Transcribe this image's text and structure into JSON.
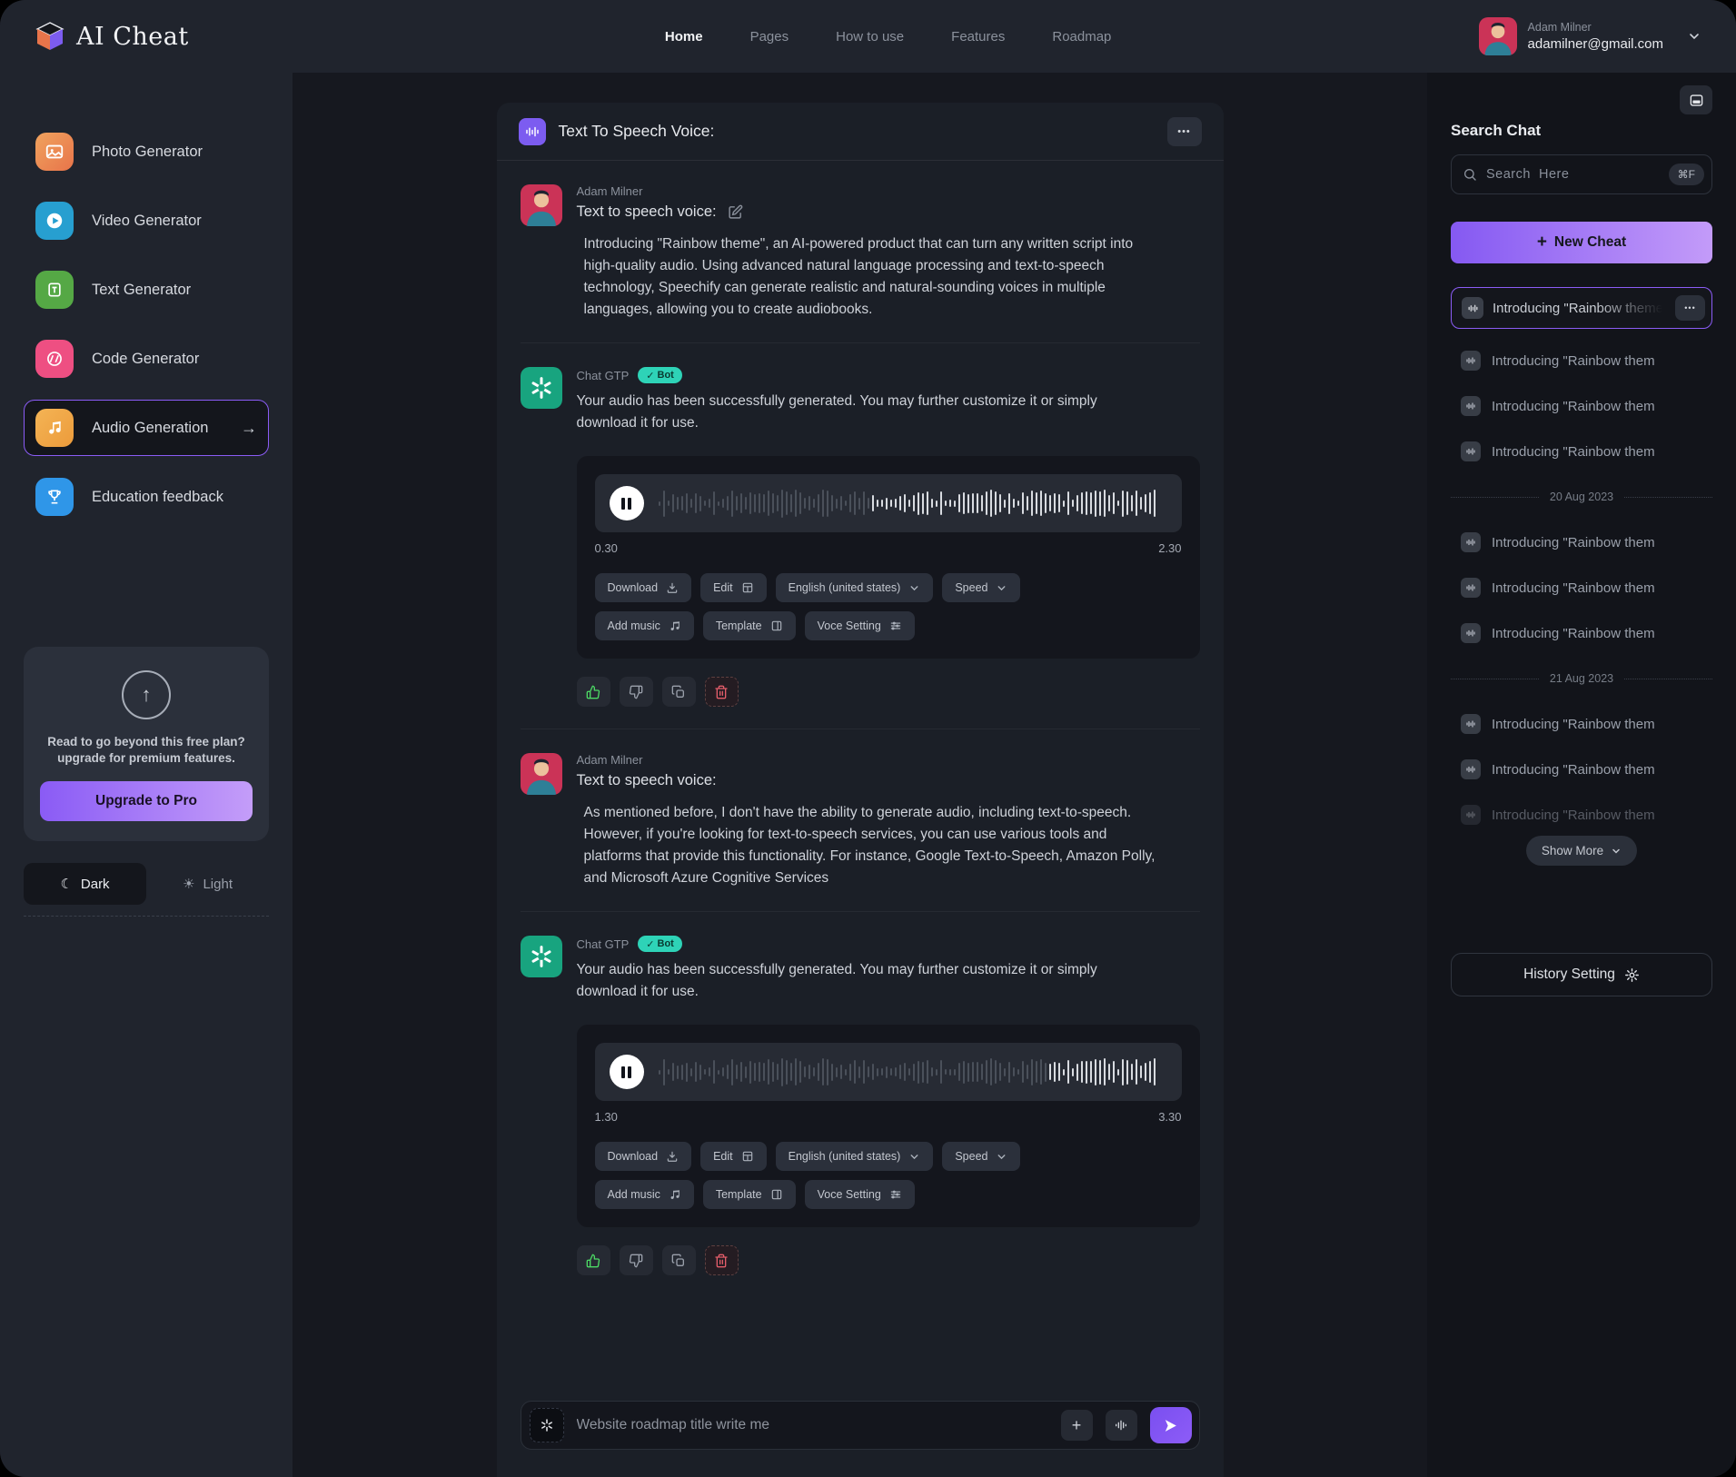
{
  "colors": {
    "accent_purple": "#8b5cf6",
    "purple_gradient": [
      "#8559f2",
      "#c39bf9"
    ],
    "bot_badge_teal": "#2ed3b7",
    "openai_green": "#18a47f",
    "like_green": "#4cd964",
    "danger_red": "#e35d6a"
  },
  "glyphs": {
    "dots": "•••",
    "plus": "+",
    "arrow_right": "→",
    "arrow_up": "↑",
    "moon": "☾",
    "sun": "☀",
    "check": "✓"
  },
  "navbar": {
    "logo": "AI Cheat",
    "links": [
      "Home",
      "Pages",
      "How to use",
      "Features",
      "Roadmap"
    ],
    "active_link": "Home",
    "user": {
      "name": "Adam Milner",
      "email": "adamilner@gmail.com"
    }
  },
  "sidebar": {
    "items": [
      {
        "label": "Photo Generator"
      },
      {
        "label": "Video Generator"
      },
      {
        "label": "Text Generator"
      },
      {
        "label": "Code Generator"
      },
      {
        "label": "Audio Generation",
        "active": true
      },
      {
        "label": "Education feedback"
      }
    ],
    "upgrade": {
      "line1": "Read to go beyond this free plan?",
      "line2": "upgrade for premium features.",
      "button": "Upgrade to Pro"
    },
    "theme": {
      "dark": "Dark",
      "light": "Light",
      "selected": "Dark"
    }
  },
  "chat": {
    "title": "Text To Speech Voice:",
    "messages": [
      {
        "author": "Adam Milner",
        "kind": "user",
        "subtitle": "Text to speech voice:",
        "body": "Introducing \"Rainbow theme\", an AI-powered product that can turn any written script into high-quality audio. Using advanced natural language processing and text-to-speech technology, Speechify can generate realistic and natural-sounding voices in multiple languages, allowing you to create audiobooks."
      },
      {
        "author": "Chat GTP",
        "kind": "bot",
        "badge": "Bot",
        "body": "Your audio has been successfully generated. You may further customize it or simply download it for use."
      },
      {
        "author": "Adam Milner",
        "kind": "user",
        "subtitle": "Text to speech voice:",
        "body": "As mentioned before, I don't have the ability to generate audio, including text-to-speech. However, if you're looking for text-to-speech services, you can use various tools and platforms that provide this functionality. For instance, Google Text-to-Speech, Amazon Polly, and Microsoft Azure Cognitive Services"
      },
      {
        "author": "Chat GTP",
        "kind": "bot",
        "badge": "Bot",
        "body": "Your audio has been successfully generated. You may further customize it or simply download it for use."
      }
    ],
    "players": [
      {
        "start": "0.30",
        "end": "2.30"
      },
      {
        "start": "1.30",
        "end": "3.30"
      }
    ],
    "player_controls": {
      "download": "Download",
      "edit": "Edit",
      "language": "English (united states)",
      "speed": "Speed",
      "add_music": "Add music",
      "template": "Template",
      "voice_setting": "Voce Setting"
    },
    "input_placeholder": "Website roadmap title write me"
  },
  "history": {
    "heading": "Search Chat",
    "search_placeholder": "Search  Here",
    "search_shortcut": "⌘F",
    "new_cheat_button": "New Cheat",
    "active_item": {
      "label": "Introducing \"Rainbow theme\", a..."
    },
    "items": [
      "Introducing \"Rainbow them",
      "Introducing \"Rainbow them",
      "Introducing \"Rainbow them",
      "Introducing \"Rainbow them",
      "Introducing \"Rainbow them",
      "Introducing \"Rainbow them",
      "Introducing \"Rainbow them",
      "Introducing \"Rainbow them",
      "Introducing \"Rainbow them"
    ],
    "dividers": [
      "20 Aug 2023",
      "21 Aug 2023"
    ],
    "show_more": "Show More",
    "history_setting": "History Setting"
  }
}
